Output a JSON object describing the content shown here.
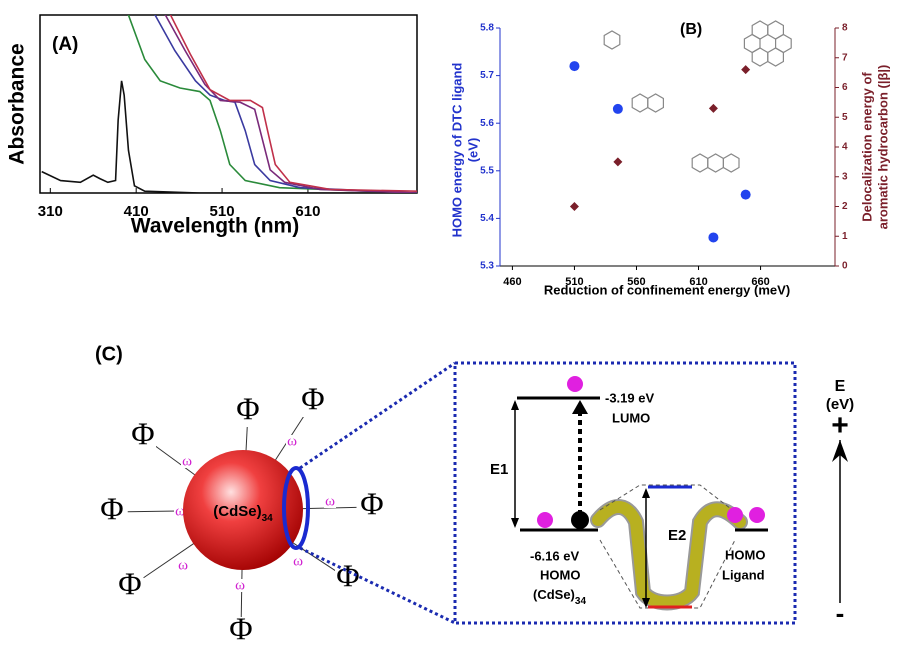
{
  "chart_data": [
    {
      "type": "line",
      "label": "(A)",
      "x_label": "Wavelength (nm)",
      "y_label": "Absorbance",
      "xlim": [
        298,
        737
      ],
      "xticks": [
        310,
        410,
        510,
        610
      ],
      "ylim": [
        0,
        1
      ],
      "series": [
        {
          "color": "#111111",
          "x": [
            300,
            322,
            345,
            360,
            368,
            377,
            386,
            389,
            393,
            396,
            401,
            408,
            420,
            484,
            737
          ],
          "values": [
            0.12,
            0.07,
            0.06,
            0.1,
            0.08,
            0.06,
            0.07,
            0.41,
            0.63,
            0.55,
            0.24,
            0.04,
            0.01,
            0,
            0
          ]
        },
        {
          "color": "#2a8a3a",
          "x": [
            380,
            401,
            420,
            438,
            461,
            484,
            496,
            508,
            519,
            537,
            577,
            737
          ],
          "values": [
            1.4,
            1.0,
            0.75,
            0.63,
            0.59,
            0.57,
            0.52,
            0.35,
            0.16,
            0.07,
            0.03,
            0
          ]
        },
        {
          "color": "#3a3aa0",
          "x": [
            420,
            432,
            455,
            479,
            496,
            513,
            525,
            537,
            548,
            566,
            601,
            737
          ],
          "values": [
            1.3,
            1,
            0.8,
            0.63,
            0.55,
            0.52,
            0.51,
            0.35,
            0.16,
            0.07,
            0.03,
            0
          ]
        },
        {
          "color": "#7a2a7a",
          "x": [
            430,
            444,
            467,
            490,
            508,
            531,
            548,
            557,
            566,
            583,
            624,
            737
          ],
          "values": [
            1.3,
            1,
            0.8,
            0.61,
            0.52,
            0.51,
            0.47,
            0.3,
            0.13,
            0.06,
            0.02,
            0
          ]
        },
        {
          "color": "#c0304a",
          "x": [
            435,
            450,
            473,
            496,
            519,
            543,
            557,
            563,
            572,
            589,
            636,
            737
          ],
          "values": [
            1.3,
            1,
            0.78,
            0.58,
            0.52,
            0.52,
            0.48,
            0.35,
            0.16,
            0.06,
            0.02,
            0.01
          ]
        }
      ]
    },
    {
      "type": "scatter",
      "label": "(B)",
      "x_label": "Reduction of confinement energy (meV)",
      "y_label": [
        "HOMO energy of DTC ligand",
        "(eV)"
      ],
      "y2_label": [
        "Delocalization energy of",
        "aromatic hydrocarbon (|β|)"
      ],
      "xlim": [
        450,
        720
      ],
      "xticks": [
        460,
        510,
        560,
        610,
        660
      ],
      "ylim": [
        5.3,
        5.8
      ],
      "yticks": [
        5.3,
        5.4,
        5.5,
        5.6,
        5.7,
        5.8
      ],
      "y2lim": [
        0,
        8
      ],
      "y2ticks": [
        0,
        1,
        2,
        3,
        4,
        5,
        6,
        7,
        8
      ],
      "y_color": "#2233cc",
      "y2_color": "#7a1f2a",
      "series": [
        {
          "color": "#2244ee",
          "marker": "circle",
          "x": [
            510,
            545,
            622,
            648
          ],
          "values": [
            5.72,
            5.63,
            5.36,
            5.45
          ]
        },
        {
          "color": "#7a1f2a",
          "marker": "diamond",
          "axis": "y2",
          "x": [
            510,
            545,
            622,
            648
          ],
          "values": [
            2.0,
            3.5,
            5.3,
            6.6
          ]
        }
      ]
    }
  ],
  "diagram": {
    "label": "(C)",
    "core": [
      "(CdSe)",
      "34"
    ],
    "ligand_symbol": "Φ",
    "linker_symbol": "ω",
    "lumo_energy": "-3.19 eV",
    "lumo": "LUMO",
    "e1": "E1",
    "e2": "E2",
    "homo_energy": "-6.16 eV",
    "homo": "HOMO",
    "homo_core": [
      "(CdSe)",
      "34"
    ],
    "ligand_homo": [
      "HOMO",
      "Ligand"
    ],
    "energy_axis": [
      "E",
      "(eV)"
    ],
    "plus": "+",
    "minus": "-"
  }
}
